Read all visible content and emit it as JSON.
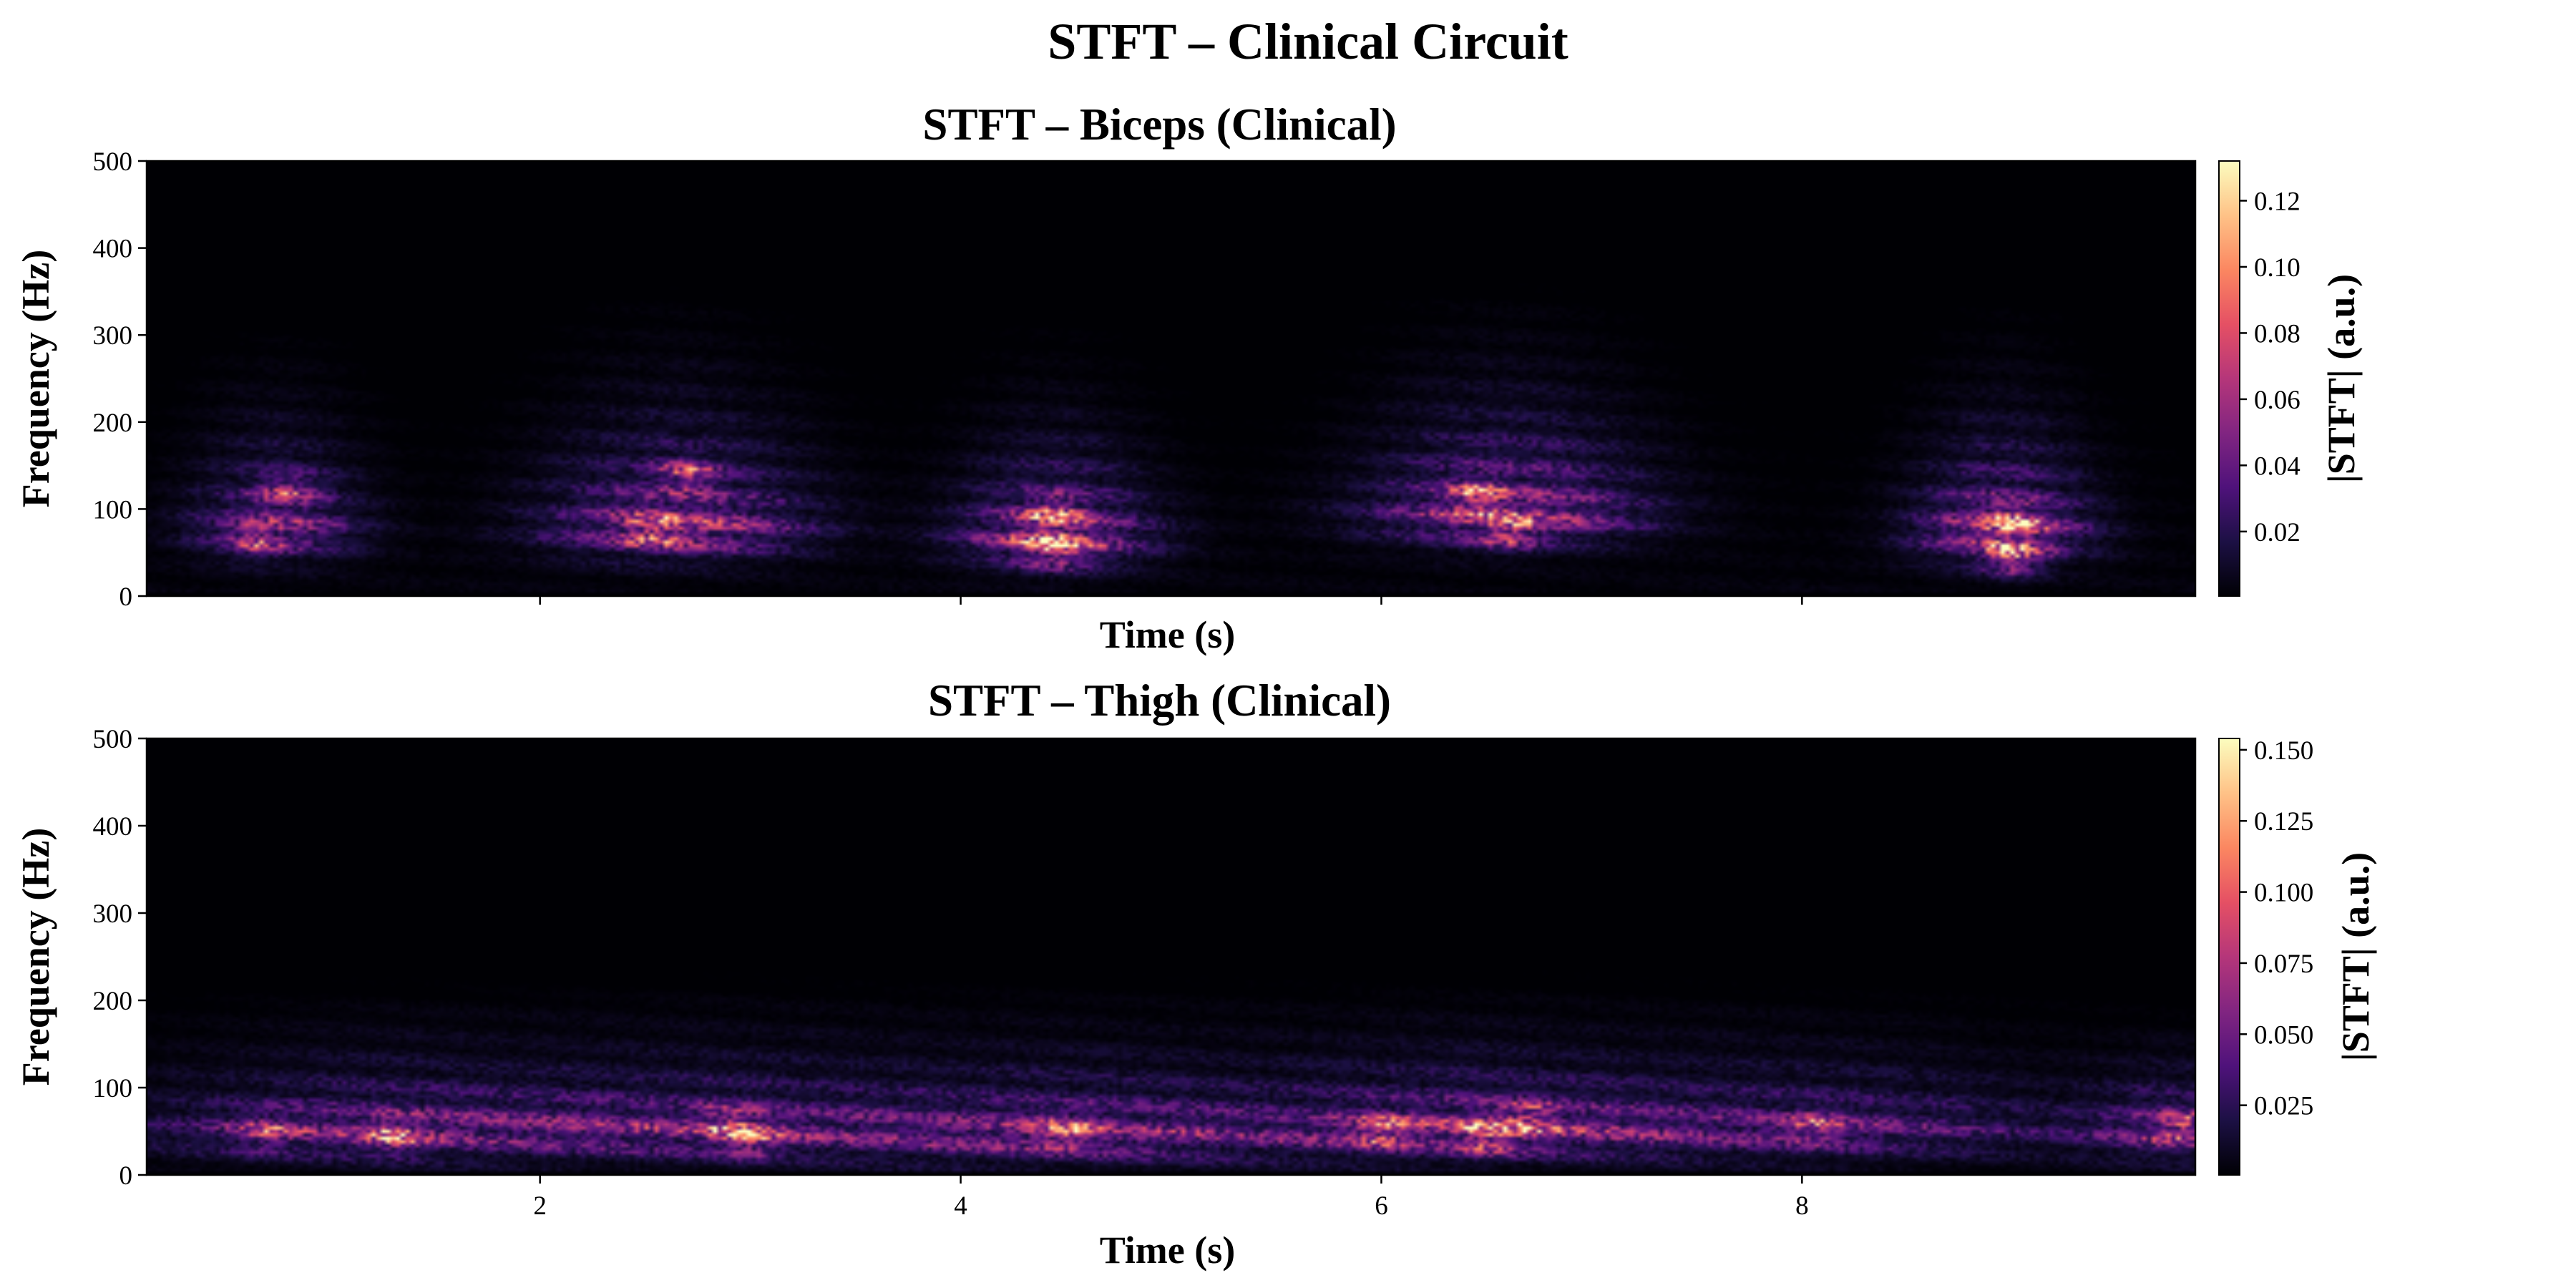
{
  "figure": {
    "title": "STFT – Clinical Circuit"
  },
  "colormap": {
    "name": "magma",
    "stops": [
      "#000004",
      "#1c1044",
      "#4f127b",
      "#812581",
      "#b5367a",
      "#e55064",
      "#fb8761",
      "#fec287",
      "#fcfdbf"
    ]
  },
  "chart_data": [
    {
      "type": "heatmap",
      "title": "STFT – Biceps (Clinical)",
      "xlabel": "Time (s)",
      "ylabel": "Frequency (Hz)",
      "colorbar_label": "|STFT| (a.u.)",
      "xlim": [
        0.13,
        9.87
      ],
      "ylim": [
        0,
        500
      ],
      "xticks": [
        2,
        4,
        6,
        8
      ],
      "xticklabels_visible": false,
      "yticks": [
        0,
        100,
        200,
        300,
        400,
        500
      ],
      "yticklabels": [
        "0",
        "100",
        "200",
        "300",
        "400",
        "500"
      ],
      "color_range": [
        0.0005,
        0.132
      ],
      "colorbar_ticks": [
        0.02,
        0.04,
        0.06,
        0.08,
        0.1,
        0.12
      ],
      "colorbar_ticklabels": [
        "0.02",
        "0.04",
        "0.06",
        "0.08",
        "0.10",
        "0.12"
      ],
      "bursts": [
        {
          "t_center": 0.75,
          "t_width": 0.25,
          "f_peak": 80,
          "f_spread": 55,
          "f_top": 290,
          "peak": 0.085
        },
        {
          "t_center": 2.65,
          "t_width": 0.38,
          "f_peak": 80,
          "f_spread": 60,
          "f_top": 340,
          "peak": 0.11
        },
        {
          "t_center": 4.45,
          "t_width": 0.28,
          "f_peak": 70,
          "f_spread": 50,
          "f_top": 320,
          "peak": 0.12
        },
        {
          "t_center": 6.6,
          "t_width": 0.4,
          "f_peak": 95,
          "f_spread": 60,
          "f_top": 340,
          "peak": 0.11
        },
        {
          "t_center": 8.95,
          "t_width": 0.25,
          "f_peak": 75,
          "f_spread": 55,
          "f_top": 330,
          "peak": 0.12
        }
      ],
      "hotspots": [
        {
          "t": 0.8,
          "f": 120,
          "v": 0.08
        },
        {
          "t": 0.65,
          "f": 65,
          "v": 0.07
        },
        {
          "t": 2.55,
          "f": 75,
          "v": 0.1
        },
        {
          "t": 2.7,
          "f": 140,
          "v": 0.09
        },
        {
          "t": 4.45,
          "f": 55,
          "v": 0.12
        },
        {
          "t": 4.45,
          "f": 95,
          "v": 0.1
        },
        {
          "t": 6.45,
          "f": 115,
          "v": 0.1
        },
        {
          "t": 6.6,
          "f": 75,
          "v": 0.1
        },
        {
          "t": 9.0,
          "f": 45,
          "v": 0.12
        },
        {
          "t": 9.0,
          "f": 85,
          "v": 0.12
        }
      ]
    },
    {
      "type": "heatmap",
      "title": "STFT – Thigh (Clinical)",
      "xlabel": "Time (s)",
      "ylabel": "Frequency (Hz)",
      "colorbar_label": "|STFT| (a.u.)",
      "xlim": [
        0.13,
        9.87
      ],
      "ylim": [
        0,
        500
      ],
      "xticks": [
        2,
        4,
        6,
        8
      ],
      "xticklabels": [
        "2",
        "4",
        "6",
        "8"
      ],
      "yticks": [
        0,
        100,
        200,
        300,
        400,
        500
      ],
      "yticklabels": [
        "0",
        "100",
        "200",
        "300",
        "400",
        "500"
      ],
      "color_range": [
        0.0005,
        0.154
      ],
      "colorbar_ticks": [
        0.025,
        0.05,
        0.075,
        0.1,
        0.125,
        0.15
      ],
      "colorbar_ticklabels": [
        "0.025",
        "0.050",
        "0.075",
        "0.100",
        "0.125",
        "0.150"
      ],
      "bursts": [
        {
          "t_center": 1.2,
          "t_width": 0.7,
          "f_peak": 55,
          "f_spread": 40,
          "f_top": 190,
          "peak": 0.09
        },
        {
          "t_center": 2.8,
          "t_width": 0.7,
          "f_peak": 55,
          "f_spread": 40,
          "f_top": 200,
          "peak": 0.09
        },
        {
          "t_center": 4.5,
          "t_width": 0.7,
          "f_peak": 50,
          "f_spread": 40,
          "f_top": 200,
          "peak": 0.1
        },
        {
          "t_center": 6.4,
          "t_width": 0.7,
          "f_peak": 55,
          "f_spread": 40,
          "f_top": 200,
          "peak": 0.11
        },
        {
          "t_center": 8.1,
          "t_width": 0.75,
          "f_peak": 55,
          "f_spread": 40,
          "f_top": 190,
          "peak": 0.075
        },
        {
          "t_center": 9.8,
          "t_width": 0.3,
          "f_peak": 55,
          "f_spread": 35,
          "f_top": 160,
          "peak": 0.09
        }
      ],
      "hotspots": [
        {
          "t": 0.7,
          "f": 50,
          "v": 0.09
        },
        {
          "t": 1.3,
          "f": 45,
          "v": 0.12
        },
        {
          "t": 2.9,
          "f": 60,
          "v": 0.1
        },
        {
          "t": 3.0,
          "f": 40,
          "v": 0.1
        },
        {
          "t": 4.5,
          "f": 50,
          "v": 0.1
        },
        {
          "t": 6.0,
          "f": 50,
          "v": 0.1
        },
        {
          "t": 6.5,
          "f": 45,
          "v": 0.13
        },
        {
          "t": 6.7,
          "f": 65,
          "v": 0.11
        },
        {
          "t": 8.05,
          "f": 55,
          "v": 0.08
        },
        {
          "t": 9.8,
          "f": 55,
          "v": 0.1
        }
      ]
    }
  ]
}
